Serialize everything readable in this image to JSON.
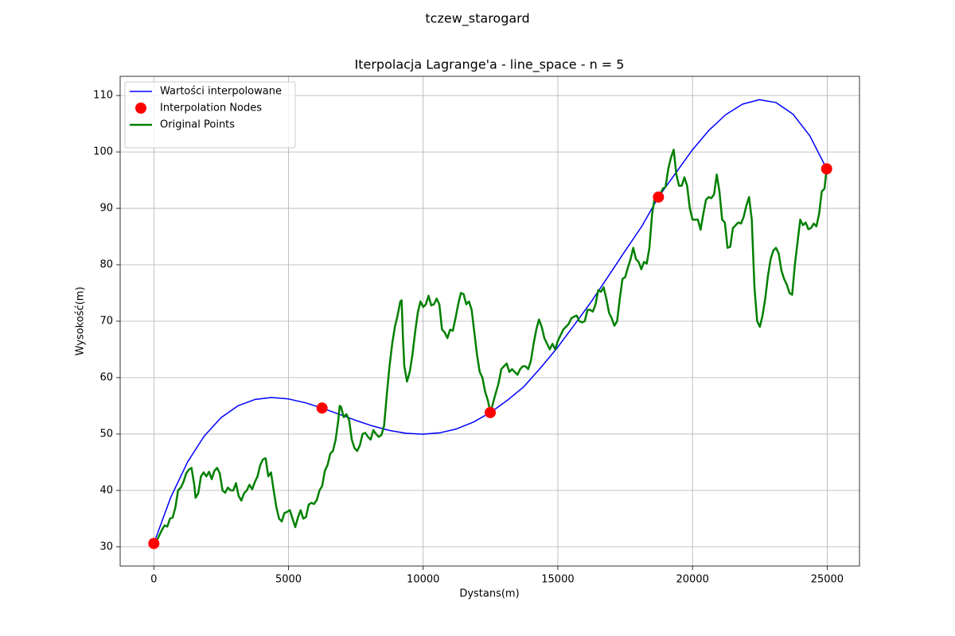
{
  "chart_data": {
    "type": "line",
    "suptitle": "tczew_starogard",
    "title": "Iterpolacja Lagrange'a - line_space - n = 5",
    "xlabel": "Dystans(m)",
    "ylabel": "Wysokość(m)",
    "xlim": [
      -1250,
      26200
    ],
    "ylim": [
      26.6,
      113.4
    ],
    "xticks": [
      0,
      5000,
      10000,
      15000,
      20000,
      25000
    ],
    "yticks": [
      30,
      40,
      50,
      60,
      70,
      80,
      90,
      100,
      110
    ],
    "grid": true,
    "legend": "upper left",
    "series": [
      {
        "name": "Wartości interpolowane",
        "color": "#0000ff",
        "style": "line",
        "width": 1.5,
        "x": [
          0,
          625,
          1249,
          1874,
          2498,
          3123,
          3747,
          4372,
          4996,
          5621,
          6245,
          6870,
          7494,
          8119,
          8743,
          9368,
          9992,
          10617,
          11241,
          11866,
          12490,
          13115,
          13739,
          14364,
          14988,
          15613,
          16237,
          16862,
          17486,
          18111,
          18735,
          19360,
          19984,
          20609,
          21233,
          21858,
          22482,
          23107,
          23731,
          24356,
          24980
        ],
        "values": [
          30.6,
          38.744,
          45.016,
          49.662,
          52.917,
          55.0,
          56.118,
          56.465,
          56.219,
          55.547,
          54.6,
          53.518,
          52.424,
          51.431,
          50.637,
          50.125,
          49.967,
          50.213,
          50.913,
          52.11,
          53.8,
          55.938,
          58.387,
          61.754,
          65.335,
          69.35,
          73.424,
          77.879,
          82.378,
          86.769,
          92.0,
          96.145,
          100.29,
          103.83,
          106.6,
          108.47,
          109.26,
          108.74,
          106.69,
          102.86,
          97.0
        ]
      },
      {
        "name": "Interpolation Nodes",
        "color": "#ff0000",
        "style": "marker",
        "x": [
          0,
          6245,
          12490,
          18735,
          24980
        ],
        "values": [
          30.6,
          54.6,
          53.8,
          92.0,
          97.0
        ]
      },
      {
        "name": "Original Points",
        "color": "#008000",
        "style": "line",
        "width": 2.5,
        "x": [
          0,
          150,
          300,
          400,
          500,
          600,
          700,
          800,
          900,
          1000,
          1100,
          1200,
          1300,
          1400,
          1500,
          1550,
          1650,
          1750,
          1850,
          1950,
          2050,
          2150,
          2250,
          2350,
          2450,
          2550,
          2650,
          2750,
          2850,
          2950,
          3050,
          3150,
          3250,
          3350,
          3450,
          3550,
          3650,
          3750,
          3850,
          3950,
          4050,
          4150,
          4250,
          4350,
          4450,
          4550,
          4650,
          4750,
          4850,
          4950,
          5050,
          5150,
          5250,
          5350,
          5450,
          5550,
          5650,
          5750,
          5850,
          5950,
          6050,
          6150,
          6250,
          6350,
          6450,
          6550,
          6650,
          6750,
          6850,
          6900,
          6950,
          7050,
          7150,
          7250,
          7350,
          7450,
          7550,
          7650,
          7750,
          7850,
          7950,
          8050,
          8150,
          8250,
          8350,
          8450,
          8550,
          8650,
          8750,
          8850,
          8950,
          9050,
          9150,
          9200,
          9250,
          9300,
          9400,
          9500,
          9600,
          9700,
          9800,
          9900,
          10000,
          10100,
          10200,
          10300,
          10400,
          10500,
          10600,
          10700,
          10800,
          10900,
          11000,
          11100,
          11200,
          11300,
          11400,
          11500,
          11600,
          11700,
          11800,
          11900,
          12000,
          12100,
          12200,
          12300,
          12400,
          12500,
          12650,
          12800,
          12900,
          13000,
          13100,
          13200,
          13300,
          13400,
          13500,
          13600,
          13700,
          13800,
          13900,
          14000,
          14100,
          14200,
          14300,
          14400,
          14500,
          14600,
          14700,
          14800,
          14900,
          15000,
          15100,
          15200,
          15300,
          15400,
          15500,
          15600,
          15700,
          15800,
          15900,
          16000,
          16100,
          16200,
          16300,
          16400,
          16500,
          16600,
          16700,
          16800,
          16900,
          17000,
          17100,
          17200,
          17300,
          17400,
          17500,
          17600,
          17700,
          17800,
          17900,
          18000,
          18100,
          18200,
          18300,
          18400,
          18500,
          18600,
          18700,
          18800,
          18900,
          19000,
          19100,
          19200,
          19300,
          19400,
          19500,
          19600,
          19700,
          19800,
          19900,
          20000,
          20100,
          20200,
          20300,
          20400,
          20500,
          20600,
          20700,
          20800,
          20900,
          21000,
          21100,
          21200,
          21300,
          21400,
          21500,
          21600,
          21700,
          21800,
          21900,
          22000,
          22100,
          22200,
          22300,
          22400,
          22500,
          22600,
          22700,
          22800,
          22900,
          23000,
          23100,
          23200,
          23300,
          23400,
          23500,
          23600,
          23700,
          23800,
          23900,
          24000,
          24100,
          24200,
          24300,
          24400,
          24500,
          24600,
          24700,
          24800,
          24900,
          24980
        ],
        "values": [
          30.6,
          31.5,
          33,
          33.8,
          33.6,
          35,
          35.2,
          37,
          40,
          40.5,
          41.5,
          43,
          43.7,
          44,
          41,
          38.7,
          39.5,
          42.5,
          43.2,
          42.5,
          43.3,
          42,
          43.5,
          44,
          43,
          40,
          39.6,
          40.5,
          40,
          40,
          41.3,
          39,
          38.2,
          39.5,
          40,
          41,
          40.2,
          41.5,
          42.5,
          44.5,
          45.5,
          45.7,
          42.5,
          43.2,
          40,
          37,
          35,
          34.5,
          36,
          36.2,
          36.5,
          35,
          33.5,
          35.2,
          36.5,
          35,
          35.3,
          37.5,
          37.8,
          37.6,
          38.3,
          40,
          40.8,
          43.5,
          44.5,
          46.5,
          47,
          49,
          52.5,
          55,
          54.8,
          53,
          53.5,
          52.5,
          49,
          47.5,
          47,
          48,
          50,
          50.2,
          49.5,
          49,
          50.7,
          50,
          49.5,
          49.8,
          51.5,
          57,
          62,
          66,
          69,
          71,
          73.5,
          73.7,
          67,
          62,
          59.3,
          61,
          64,
          68,
          71.5,
          73.5,
          72.5,
          73,
          74.5,
          72.8,
          73,
          74,
          73,
          68.5,
          68,
          67,
          68.5,
          68.3,
          70.5,
          73,
          75,
          74.8,
          73,
          73.5,
          72,
          68,
          64,
          61,
          60,
          57.5,
          56,
          53.8,
          56.5,
          59,
          61.5,
          62,
          62.5,
          61,
          61.5,
          61,
          60.5,
          61.5,
          62,
          62,
          61.5,
          63,
          66,
          68.5,
          70.3,
          69,
          67,
          66,
          65,
          66,
          65,
          66.5,
          67.5,
          68.5,
          69,
          69.5,
          70.5,
          70.8,
          71,
          70,
          69.8,
          70,
          72,
          72,
          71.7,
          73,
          75.5,
          75.2,
          76,
          74,
          71.5,
          70.5,
          69.2,
          70,
          74,
          77.5,
          77.8,
          79.5,
          81,
          83,
          81,
          80.5,
          79.2,
          80.5,
          80.2,
          83,
          89,
          92,
          92,
          92.5,
          93.5,
          93.8,
          97,
          99,
          100.4,
          96,
          94,
          94,
          95.5,
          94,
          90,
          88,
          88,
          88,
          86.2,
          89,
          91.5,
          92,
          91.8,
          92.5,
          96,
          93,
          88,
          87.5,
          83,
          83.2,
          86.5,
          87,
          87.5,
          87.3,
          88.5,
          90.5,
          92,
          88,
          76,
          70,
          69,
          71,
          74,
          78,
          81,
          82.5,
          83,
          82,
          79,
          77.5,
          76.5,
          75,
          74.7,
          80,
          84,
          88,
          87,
          87.5,
          86.3,
          86.5,
          87.3,
          86.8,
          89,
          93,
          93.5,
          97
        ]
      }
    ]
  }
}
